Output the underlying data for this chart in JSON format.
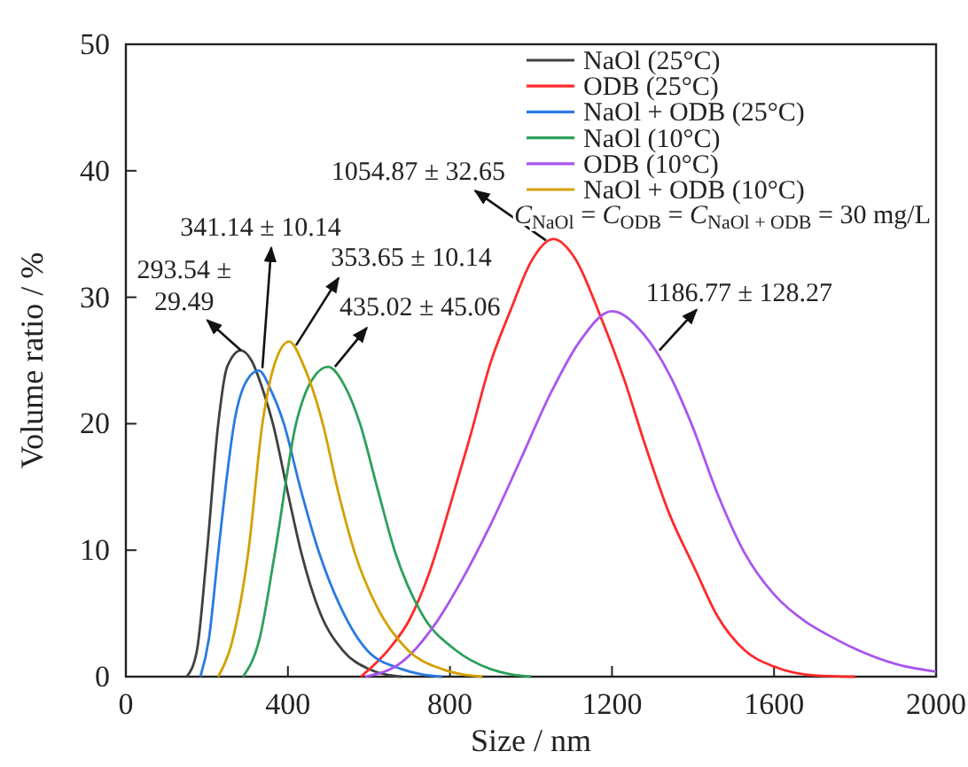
{
  "chart_data": {
    "type": "line",
    "xlabel": "Size / nm",
    "ylabel": "Volume ratio / %",
    "xlim": [
      0,
      2000
    ],
    "ylim": [
      0,
      50
    ],
    "xticks": [
      0,
      400,
      800,
      1200,
      1600,
      2000
    ],
    "yticks": [
      0,
      10,
      20,
      30,
      40,
      50
    ],
    "grid": false,
    "legend": "top right",
    "series": [
      {
        "name": "NaOl (25°C)",
        "color": "#404040",
        "x": [
          150,
          175,
          200,
          228,
          250,
          284,
          310,
          340,
          363,
          400,
          433,
          480,
          535,
          600,
          680
        ],
        "values": [
          0,
          2,
          9.8,
          20,
          24.5,
          25.8,
          25,
          22.5,
          20,
          14.5,
          9.8,
          5,
          2.1,
          0.6,
          0
        ]
      },
      {
        "name": "ODB (25°C)",
        "color": "#ff2a2a",
        "x": [
          580,
          650,
          700,
          750,
          800,
          850,
          900,
          950,
          1000,
          1055,
          1110,
          1169,
          1230,
          1280,
          1340,
          1405,
          1460,
          1527,
          1600,
          1700,
          1800
        ],
        "values": [
          0,
          2.2,
          4.5,
          8.3,
          13.5,
          19,
          24.8,
          29,
          32.8,
          34.6,
          33,
          28.7,
          23.5,
          18.5,
          13,
          8.5,
          4.8,
          2.1,
          0.8,
          0.1,
          0
        ]
      },
      {
        "name": "NaOl + ODB (25°C)",
        "color": "#2a7ae2",
        "x": [
          184,
          205,
          228,
          250,
          267,
          300,
          328,
          360,
          390,
          430,
          477,
          530,
          595,
          680,
          780
        ],
        "values": [
          0,
          3,
          9.8,
          16,
          20,
          23.5,
          24.2,
          22.5,
          20,
          15,
          9.8,
          5.5,
          2.1,
          0.6,
          0
        ]
      },
      {
        "name": "NaOl (10°C)",
        "color": "#2ca05a",
        "x": [
          289,
          330,
          368,
          420,
          460,
          499,
          540,
          578,
          620,
          665,
          730,
          814,
          900,
          1000
        ],
        "values": [
          0,
          3,
          9.8,
          20,
          23.5,
          24.5,
          23,
          20,
          15,
          9.8,
          5,
          2.1,
          0.6,
          0
        ]
      },
      {
        "name": "ODB (10°C)",
        "color": "#a855f0",
        "x": [
          590,
          683,
          760,
          827,
          900,
          972,
          1050,
          1120,
          1200,
          1280,
          1340,
          1396,
          1460,
          1527,
          1600,
          1680,
          1733,
          1800,
          1900,
          2000
        ],
        "values": [
          0,
          1.2,
          4,
          7.5,
          12,
          17,
          22.5,
          26.5,
          28.9,
          27,
          24,
          20,
          14.5,
          9.8,
          6.5,
          4.3,
          3.3,
          2.2,
          1,
          0.4
        ]
      },
      {
        "name": "NaOl + ODB (10°C)",
        "color": "#d4a000",
        "x": [
          228,
          260,
          302,
          337,
          370,
          403,
          440,
          486,
          525,
          565,
          620,
          696,
          780,
          880
        ],
        "values": [
          0,
          2.5,
          9.8,
          20,
          25,
          26.5,
          24.5,
          20,
          14.5,
          9.8,
          5.5,
          2.1,
          0.6,
          0
        ]
      }
    ],
    "annotations": [
      {
        "text": "293.54 ± 29.49",
        "x": 284,
        "y": 25.8
      },
      {
        "text": "341.14 ± 10.14",
        "x": 337,
        "y": 24.4
      },
      {
        "text": "353.65 ± 10.14",
        "x": 420,
        "y": 26.2
      },
      {
        "text": "435.02 ± 45.06",
        "x": 516,
        "y": 24.5
      },
      {
        "text": "1054.87 ± 32.65",
        "x": 1037,
        "y": 34.5
      },
      {
        "text": "1186.77 ± 128.27",
        "x": 1317,
        "y": 25.8
      },
      "C$_{NaOl}$ = C$_{ODB}$ = C$_{NaOl + ODB}$ = 30 mg/L"
    ]
  }
}
